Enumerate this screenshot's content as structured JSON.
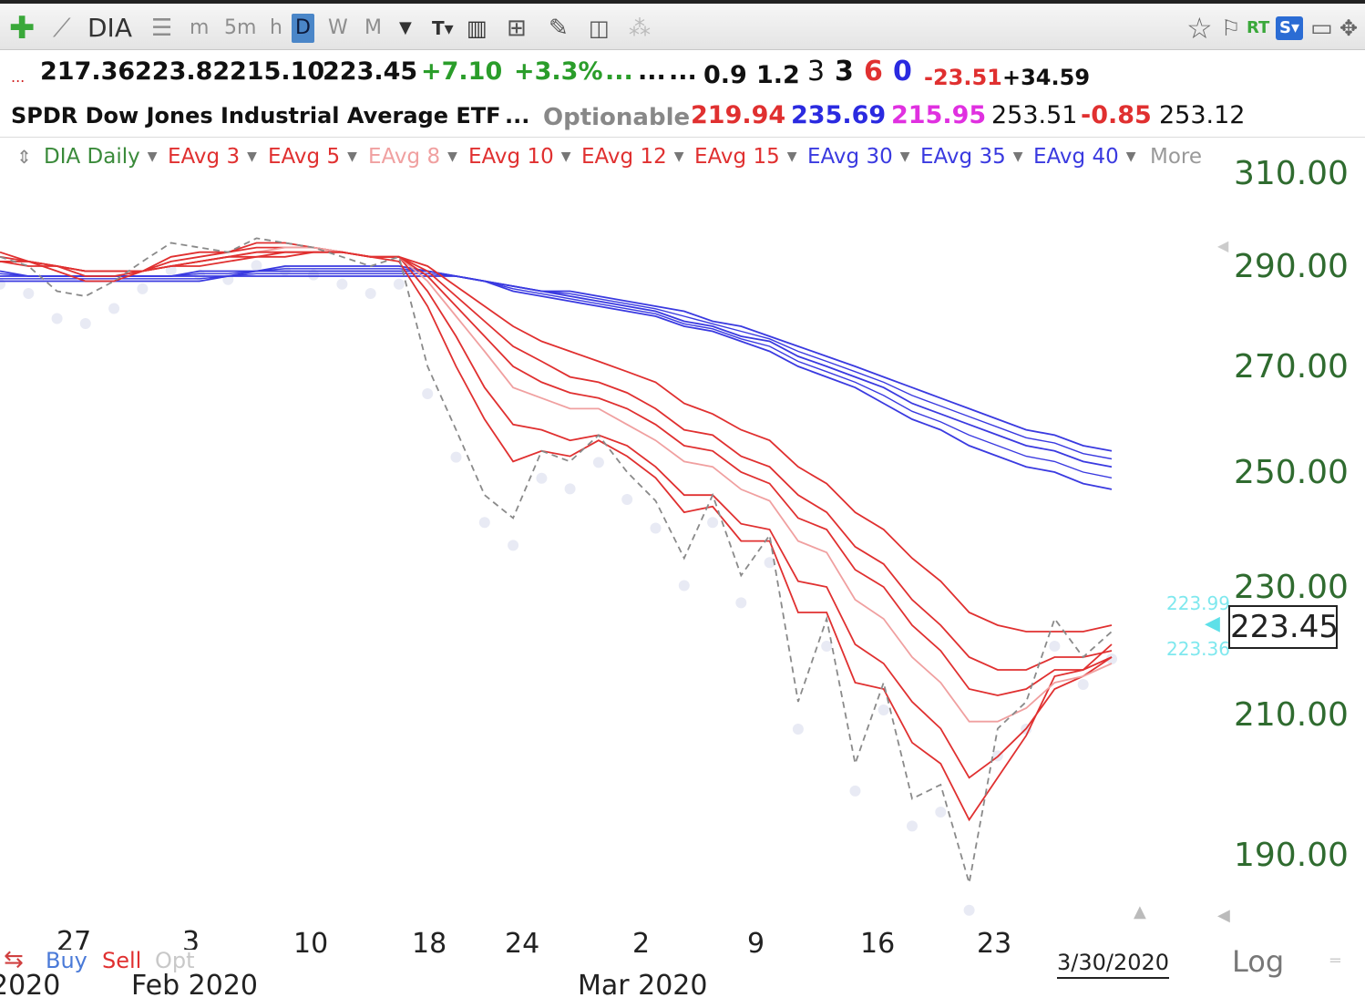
{
  "toolbar": {
    "symbol": "DIA",
    "intervals": [
      "m",
      "5m",
      "h",
      "D",
      "W",
      "M"
    ],
    "active_interval": "D",
    "rt_label": "RT"
  },
  "quote": {
    "open": "217.36",
    "high": "223.82",
    "low": "215.10",
    "close": "223.45",
    "change": "+7.10",
    "change_pct": "+3.3%",
    "ellipsis": "...",
    "v1": "0.9",
    "v2": "1.2",
    "c1": "3",
    "c2": "3",
    "c3": "6",
    "c4": "0",
    "neg_val": "-23.51",
    "pos_val": "+34.59"
  },
  "quote2": {
    "name": "SPDR Dow Jones Industrial Average ETF",
    "dots": "...",
    "optionable": "Optionable",
    "p1": "219.94",
    "p2": "235.69",
    "p3": "215.95",
    "p4": "253.51",
    "p5": "-0.85",
    "p6": "253.12"
  },
  "legend": {
    "series_label": "DIA Daily",
    "items": [
      "EAvg 3",
      "EAvg 5",
      "EAvg 8",
      "EAvg 10",
      "EAvg 12",
      "EAvg 15",
      "EAvg 30",
      "EAvg 35",
      "EAvg 40"
    ],
    "colors": [
      "#e03030",
      "#e03030",
      "#f0a0a0",
      "#e03030",
      "#e03030",
      "#e03030",
      "#3a3ae0",
      "#3a3ae0",
      "#3a3ae0"
    ],
    "more": "More"
  },
  "chart_data": {
    "type": "line",
    "title": "",
    "y_ticks": [
      "310.00",
      "290.00",
      "270.00",
      "250.00",
      "230.00",
      "210.00",
      "190.00"
    ],
    "x_ticks": [
      "27",
      "3",
      "10",
      "18",
      "24",
      "2",
      "9",
      "16",
      "23"
    ],
    "x_months": [
      "2020",
      "Feb 2020",
      "Mar 2020"
    ],
    "last_price": "223.45",
    "marker_high": "223.99",
    "marker_low": "223.36",
    "last_date": "3/30/2020",
    "ylim": [
      180,
      312
    ],
    "price_series_style": "dashed gray",
    "close_values": [
      292,
      290,
      285,
      284,
      287,
      291,
      295,
      294,
      293,
      296,
      295,
      294,
      292,
      290,
      292,
      270,
      258,
      246,
      242,
      254,
      252,
      257,
      250,
      245,
      235,
      246,
      232,
      239,
      212,
      225,
      203,
      215,
      198,
      200,
      186,
      208,
      212,
      225,
      219,
      223
    ],
    "red_series": [
      {
        "name": "EAvg 3",
        "values": [
          293,
          291,
          289,
          287,
          287,
          289,
          292,
          293,
          293,
          295,
          295,
          294,
          293,
          292,
          291,
          282,
          270,
          260,
          252,
          254,
          253,
          256,
          253,
          249,
          243,
          244,
          238,
          238,
          226,
          226,
          215,
          214,
          206,
          203,
          195,
          201,
          207,
          216,
          217,
          221
        ]
      },
      {
        "name": "EAvg 5",
        "values": [
          292,
          291,
          290,
          288,
          288,
          289,
          291,
          292,
          293,
          294,
          294,
          294,
          293,
          292,
          292,
          285,
          276,
          266,
          259,
          258,
          256,
          257,
          255,
          251,
          246,
          246,
          241,
          240,
          231,
          230,
          221,
          218,
          212,
          208,
          201,
          204,
          208,
          214,
          216,
          219
        ]
      },
      {
        "name": "EAvg 8",
        "values": [
          291,
          291,
          290,
          289,
          289,
          289,
          290,
          291,
          292,
          293,
          294,
          294,
          293,
          292,
          292,
          287,
          280,
          273,
          266,
          264,
          262,
          262,
          259,
          256,
          252,
          251,
          247,
          245,
          238,
          236,
          228,
          225,
          219,
          215,
          209,
          209,
          211,
          215,
          216,
          218
        ]
      },
      {
        "name": "EAvg 10",
        "values": [
          291,
          291,
          290,
          289,
          289,
          289,
          290,
          291,
          292,
          293,
          293,
          293,
          293,
          292,
          292,
          288,
          282,
          276,
          270,
          267,
          265,
          264,
          262,
          259,
          255,
          254,
          250,
          248,
          242,
          240,
          233,
          230,
          224,
          220,
          214,
          213,
          214,
          217,
          217,
          219
        ]
      },
      {
        "name": "EAvg 12",
        "values": [
          291,
          291,
          290,
          289,
          289,
          289,
          290,
          291,
          292,
          292,
          293,
          293,
          293,
          292,
          292,
          289,
          284,
          279,
          274,
          271,
          268,
          267,
          265,
          262,
          258,
          257,
          253,
          251,
          246,
          243,
          237,
          234,
          228,
          224,
          219,
          217,
          217,
          219,
          219,
          220
        ]
      },
      {
        "name": "EAvg 15",
        "values": [
          291,
          290,
          290,
          289,
          289,
          289,
          290,
          290,
          291,
          292,
          292,
          293,
          293,
          292,
          292,
          290,
          286,
          282,
          278,
          275,
          273,
          271,
          269,
          267,
          263,
          261,
          258,
          256,
          251,
          248,
          243,
          240,
          235,
          231,
          226,
          224,
          223,
          223,
          223,
          224
        ]
      }
    ],
    "blue_series": [
      {
        "name": "EAvg 30",
        "values": [
          289,
          288,
          288,
          288,
          288,
          288,
          288,
          289,
          289,
          289,
          290,
          290,
          290,
          290,
          290,
          289,
          288,
          287,
          285,
          284,
          283,
          282,
          281,
          280,
          278,
          277,
          275,
          273,
          270,
          268,
          266,
          263,
          260,
          258,
          255,
          253,
          251,
          250,
          248,
          247
        ]
      },
      {
        "name": "EAvg 35",
        "values": [
          288,
          288,
          288,
          288,
          288,
          288,
          288,
          288,
          288,
          289,
          289,
          289,
          289,
          289,
          289,
          289,
          288,
          287,
          286,
          285,
          284,
          283,
          282,
          281,
          279,
          278,
          276,
          275,
          272,
          270,
          268,
          266,
          263,
          261,
          259,
          257,
          255,
          254,
          252,
          251
        ]
      },
      {
        "name": "EAvg 40",
        "values": [
          287,
          287,
          287,
          287,
          287,
          287,
          287,
          287,
          288,
          288,
          288,
          288,
          288,
          288,
          288,
          288,
          288,
          287,
          286,
          285,
          285,
          284,
          283,
          282,
          281,
          279,
          278,
          276,
          274,
          272,
          270,
          268,
          266,
          264,
          262,
          260,
          258,
          257,
          255,
          254
        ]
      }
    ]
  },
  "footer": {
    "buy": "Buy",
    "sell": "Sell",
    "opt": "Opt",
    "log": "Log"
  }
}
